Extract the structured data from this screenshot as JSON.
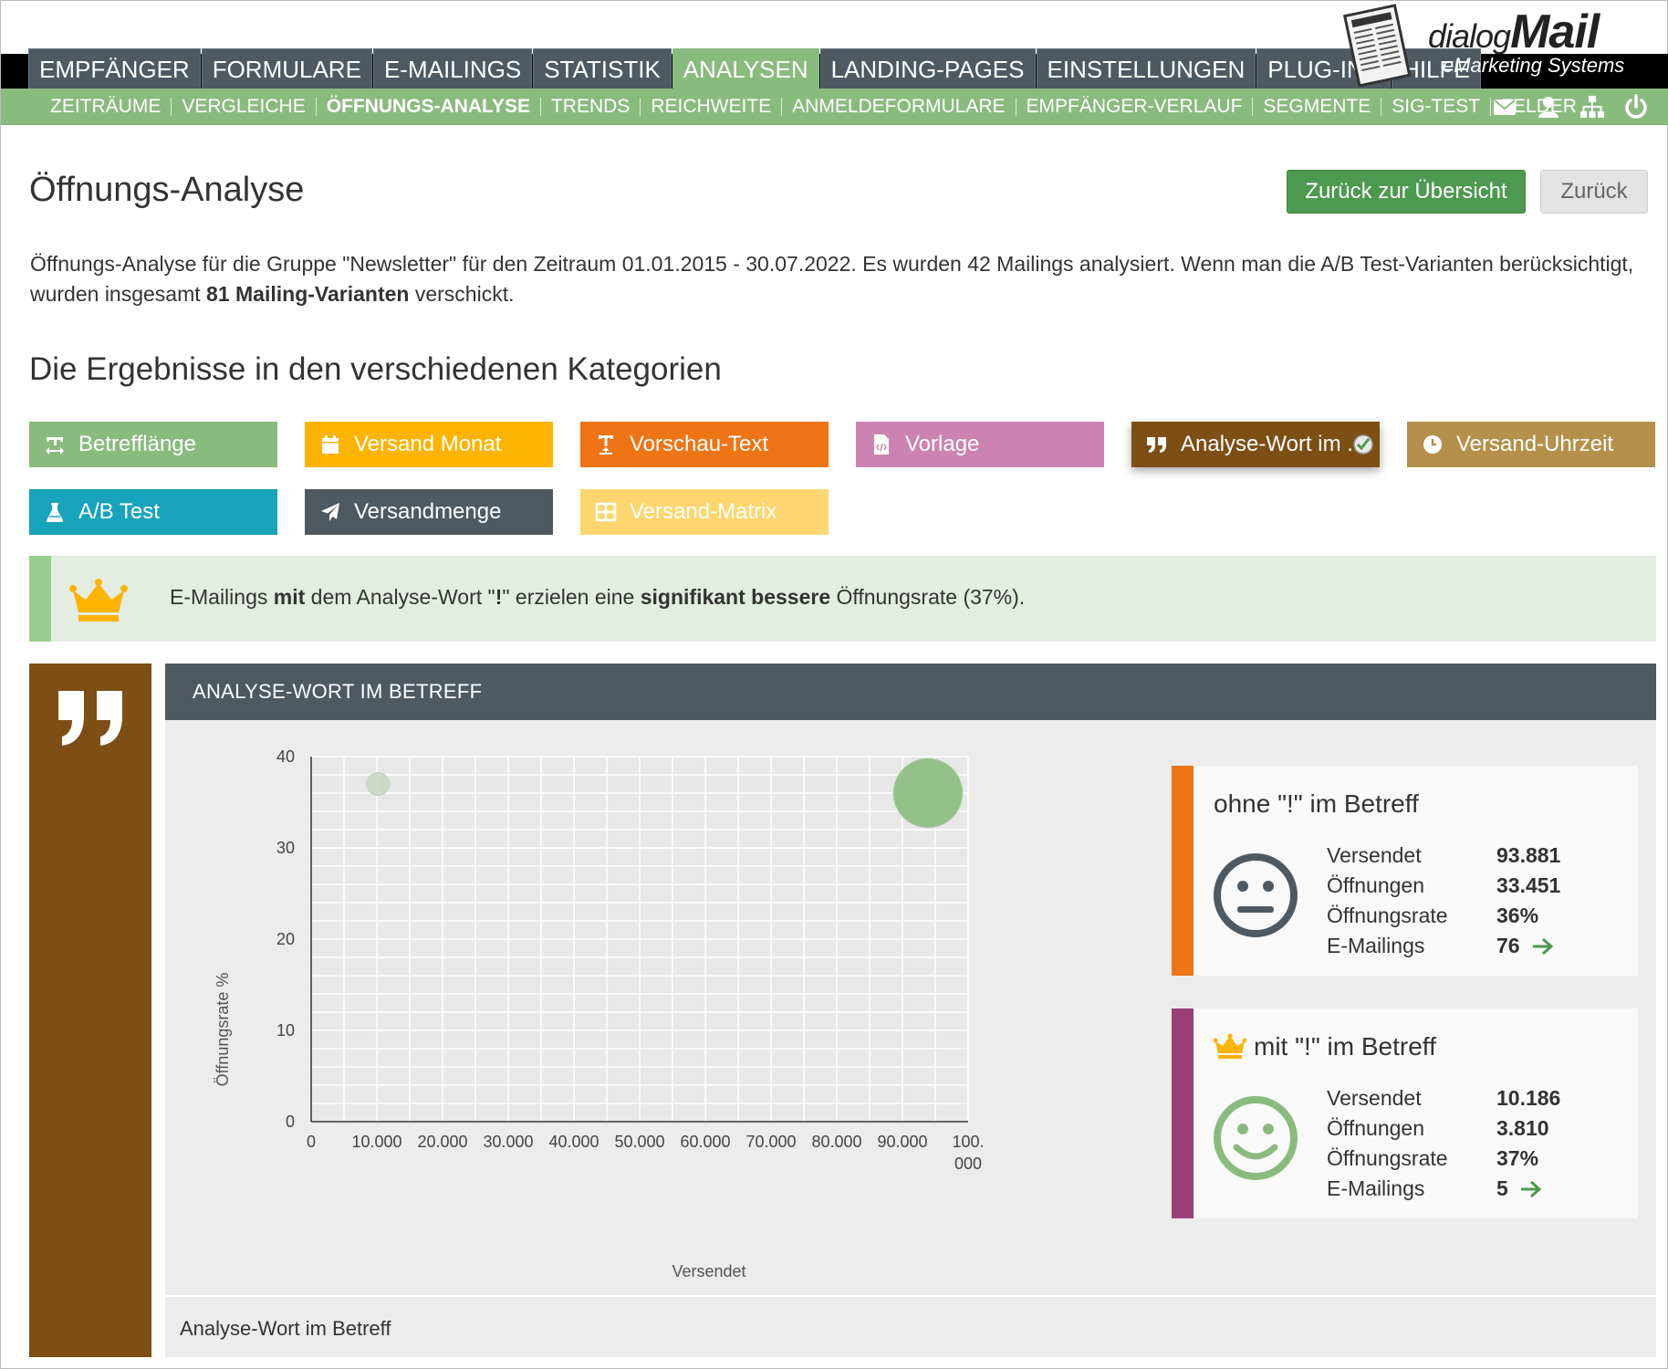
{
  "logo": {
    "word1": "dialog",
    "word2": "Mail",
    "tagline": "eMarketing Systems"
  },
  "main_nav": [
    {
      "label": "EMPFÄNGER"
    },
    {
      "label": "FORMULARE"
    },
    {
      "label": "E-MAILINGS"
    },
    {
      "label": "STATISTIK"
    },
    {
      "label": "ANALYSEN",
      "active": true
    },
    {
      "label": "LANDING-PAGES"
    },
    {
      "label": "EINSTELLUNGEN"
    },
    {
      "label": "PLUG-INS"
    },
    {
      "label": "HILFE"
    }
  ],
  "sub_nav": [
    {
      "label": "ZEITRÄUME"
    },
    {
      "label": "VERGLEICHE"
    },
    {
      "label": "ÖFFNUNGS-ANALYSE",
      "active": true
    },
    {
      "label": "TRENDS"
    },
    {
      "label": "REICHWEITE"
    },
    {
      "label": "ANMELDEFORMULARE"
    },
    {
      "label": "EMPFÄNGER-VERLAUF"
    },
    {
      "label": "SEGMENTE"
    },
    {
      "label": "SIG-TEST"
    },
    {
      "label": "FELDER"
    }
  ],
  "sub_nav_icons": [
    "envelope-icon",
    "user-icon",
    "sitemap-icon",
    "power-icon"
  ],
  "header": {
    "title": "Öffnungs-Analyse",
    "overview_button": "Zurück zur Übersicht",
    "back_button": "Zurück"
  },
  "intro": {
    "part1": "Öffnungs-Analyse für die Gruppe \"Newsletter\" für den Zeitraum 01.01.2015 - 30.07.2022. Es wurden 42 Mailings analysiert. Wenn man die A/B Test-Varianten berücksichtigt, wurden insgesamt ",
    "bold": "81 Mailing-Varianten",
    "part2": " verschickt."
  },
  "section_title": "Die Ergebnisse in den verschiedenen Kategorien",
  "categories": [
    {
      "label": "Betrefflänge",
      "icon": "text-width-icon",
      "color": "#8abb7e"
    },
    {
      "label": "Versand Monat",
      "icon": "calendar-icon",
      "color": "#fdb301"
    },
    {
      "label": "Vorschau-Text",
      "icon": "text-height-icon",
      "color": "#ef7415"
    },
    {
      "label": "Vorlage",
      "icon": "file-code-icon",
      "color": "#cc83b1"
    },
    {
      "label": "Analyse-Wort im ...",
      "icon": "quote-icon",
      "color": "#7d4f14",
      "selected": true
    },
    {
      "label": "Versand-Uhrzeit",
      "icon": "clock-icon",
      "color": "#b4904a"
    },
    {
      "label": "A/B Test",
      "icon": "flask-icon",
      "color": "#17a3bb"
    },
    {
      "label": "Versandmenge",
      "icon": "paper-plane-icon",
      "color": "#4f5962"
    },
    {
      "label": "Versand-Matrix",
      "icon": "table-icon",
      "color": "#fed66f"
    }
  ],
  "banner": {
    "t1": "E-Mailings ",
    "b1": "mit",
    "t2": " dem Analyse-Wort \"",
    "b2": "!",
    "t3": "\" erzielen eine ",
    "b3": "signifikant bessere",
    "t4": " Öffnungsrate (37%)."
  },
  "panel": {
    "title": "ANALYSE-WORT IM BETREFF",
    "footer": "Analyse-Wort im Betreff"
  },
  "chart_data": {
    "type": "scatter",
    "xlabel": "Versendet",
    "ylabel": "Öffnungsrate %",
    "xlim": [
      0,
      100000
    ],
    "ylim": [
      0,
      40
    ],
    "x_ticks": [
      "0",
      "10.000",
      "20.000",
      "30.000",
      "40.000",
      "50.000",
      "60.000",
      "70.000",
      "80.000",
      "90.000",
      "100.000"
    ],
    "y_ticks": [
      "0",
      "10",
      "20",
      "30",
      "40"
    ],
    "grid": true,
    "series": [
      {
        "x": 10186,
        "y": 37,
        "size": 10186,
        "color": "#c6d8c2"
      },
      {
        "x": 93881,
        "y": 36,
        "size": 93881,
        "color": "#8abb7e"
      }
    ]
  },
  "cards": {
    "without": {
      "title": "ohne \"!\" im Betreff",
      "color": "#ef7415",
      "face": "neutral-face-icon",
      "stats": [
        {
          "label": "Versendet",
          "value": "93.881"
        },
        {
          "label": "Öffnungen",
          "value": "33.451"
        },
        {
          "label": "Öffnungsrate",
          "value": "36%"
        },
        {
          "label": "E-Mailings",
          "value": "76",
          "link": true
        }
      ]
    },
    "with": {
      "title": "mit \"!\" im Betreff",
      "color": "#9a3f76",
      "face": "smile-face-icon",
      "stats": [
        {
          "label": "Versendet",
          "value": "10.186"
        },
        {
          "label": "Öffnungen",
          "value": "3.810"
        },
        {
          "label": "Öffnungsrate",
          "value": "37%"
        },
        {
          "label": "E-Mailings",
          "value": "5",
          "link": true
        }
      ]
    }
  }
}
